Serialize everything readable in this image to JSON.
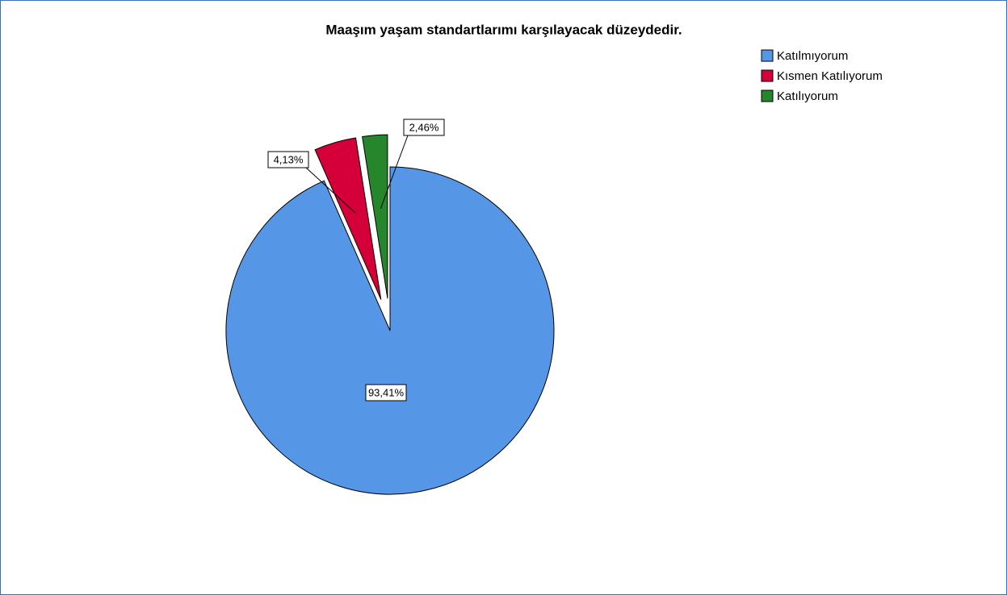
{
  "chart_data": {
    "type": "pie",
    "title": "Maaşım yaşam standartlarımı karşılayacak düzeydedir.",
    "categories": [
      "Katılmıyorum",
      "Kısmen Katılıyorum",
      "Katılıyorum"
    ],
    "values": [
      93.41,
      4.13,
      2.46
    ],
    "value_labels": [
      "93,41%",
      "4,13%",
      "2,46%"
    ],
    "colors": [
      "#5596e6",
      "#d5003a",
      "#25862b"
    ],
    "legend": "top-right"
  }
}
